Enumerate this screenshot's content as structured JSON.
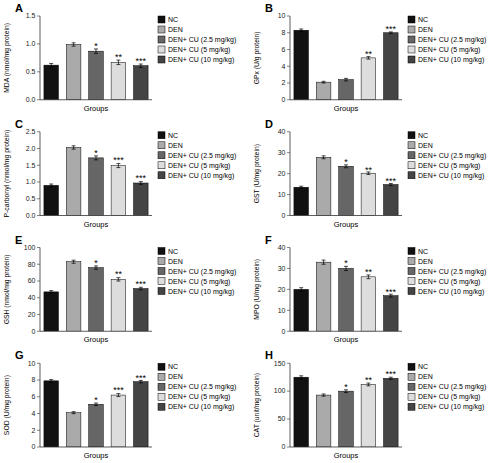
{
  "chart_data": [
    {
      "type": "bar",
      "title": "A",
      "xlabel": "Groups",
      "ylabel": "MDA (nmol/mg protein)",
      "categories": [
        "NC",
        "DEN",
        "DEN+ CU (2.5 mg/kg)",
        "DEN+ CU (5 mg/kg)",
        "DEN+ CU (10 mg/kg)"
      ],
      "values": [
        0.62,
        0.99,
        0.87,
        0.67,
        0.61
      ],
      "errors": [
        0.03,
        0.03,
        0.04,
        0.04,
        0.03
      ],
      "colors": [
        "#111111",
        "#aaaaaa",
        "#666666",
        "#dddddd",
        "#444444"
      ],
      "ylim": [
        0,
        1.5
      ],
      "yticks": [
        {
          "value": 0,
          "label": "0.0"
        },
        0.5,
        {
          "value": 1,
          "label": "1.0"
        },
        1.5
      ],
      "annotations": [
        {
          "text": "*",
          "category": "DEN+ CU (2.5 mg/kg)",
          "y": 0.93
        },
        {
          "text": "**",
          "category": "DEN+ CU (5 mg/kg)",
          "y": 0.73
        },
        {
          "text": "***",
          "category": "DEN+ CU (10 mg/kg)",
          "y": 0.66
        }
      ],
      "legend": "right",
      "grid": false,
      "tick_labels": "y"
    },
    {
      "type": "bar",
      "title": "B",
      "xlabel": "Groups",
      "ylabel": "GPx (U/g protein)",
      "categories": [
        "NC",
        "DEN",
        "DEN+ CU (2.5 mg/kg)",
        "DEN+ CU (5 mg/kg)",
        "DEN+ CU (10 mg/kg)"
      ],
      "values": [
        8.3,
        2.1,
        2.4,
        5.0,
        8.0
      ],
      "errors": [
        0.15,
        0.1,
        0.15,
        0.15,
        0.1
      ],
      "colors": [
        "#111111",
        "#aaaaaa",
        "#666666",
        "#dddddd",
        "#444444"
      ],
      "ylim": [
        0,
        10
      ],
      "yticks": [
        0,
        2,
        4,
        6,
        8,
        10
      ],
      "annotations": [
        {
          "text": "**",
          "category": "DEN+ CU (5 mg/kg)",
          "y": 5.25
        },
        {
          "text": "***",
          "category": "DEN+ CU (10 mg/kg)",
          "y": 8.2
        }
      ],
      "legend": "right",
      "grid": false,
      "tick_labels": "y"
    },
    {
      "type": "bar",
      "title": "C",
      "xlabel": "Groups",
      "ylabel": "P-carbonyl (nmol/mg protein)",
      "categories": [
        "NC",
        "DEN",
        "DEN+ CU (2.5 mg/kg)",
        "DEN+ CU (5 mg/kg)",
        "DEN+ CU (10 mg/kg)"
      ],
      "values": [
        0.9,
        2.03,
        1.72,
        1.49,
        0.97
      ],
      "errors": [
        0.04,
        0.05,
        0.06,
        0.06,
        0.04
      ],
      "colors": [
        "#111111",
        "#aaaaaa",
        "#666666",
        "#dddddd",
        "#444444"
      ],
      "ylim": [
        0,
        2.5
      ],
      "yticks": [
        {
          "value": 0,
          "label": "0.0"
        },
        0.5,
        {
          "value": 1,
          "label": "1.0"
        },
        1.5,
        {
          "value": 2,
          "label": "2.0"
        },
        2.5
      ],
      "annotations": [
        {
          "text": "*",
          "category": "DEN+ CU (2.5 mg/kg)",
          "y": 1.82
        },
        {
          "text": "***",
          "category": "DEN+ CU (5 mg/kg)",
          "y": 1.59
        },
        {
          "text": "***",
          "category": "DEN+ CU (10 mg/kg)",
          "y": 1.05
        }
      ],
      "legend": "right",
      "grid": false,
      "tick_labels": "y"
    },
    {
      "type": "bar",
      "title": "D",
      "xlabel": "Groups",
      "ylabel": "GST (U/mg protein)",
      "categories": [
        "NC",
        "DEN",
        "DEN+ CU (2.5 mg/kg)",
        "DEN+ CU (5 mg/kg)",
        "DEN+ CU (10 mg/kg)"
      ],
      "values": [
        13.5,
        27.8,
        23.5,
        20.2,
        14.8
      ],
      "errors": [
        0.5,
        0.7,
        0.7,
        0.6,
        0.5
      ],
      "colors": [
        "#111111",
        "#aaaaaa",
        "#666666",
        "#dddddd",
        "#444444"
      ],
      "ylim": [
        0,
        40
      ],
      "yticks": [
        0,
        10,
        20,
        30,
        40
      ],
      "annotations": [
        {
          "text": "*",
          "category": "DEN+ CU (2.5 mg/kg)",
          "y": 24.6
        },
        {
          "text": "**",
          "category": "DEN+ CU (5 mg/kg)",
          "y": 21.0
        },
        {
          "text": "***",
          "category": "DEN+ CU (10 mg/kg)",
          "y": 15.5
        }
      ],
      "legend": "right",
      "grid": false,
      "tick_labels": "y"
    },
    {
      "type": "bar",
      "title": "E",
      "xlabel": "Groups",
      "ylabel": "GSH (nmol/mg protein)",
      "categories": [
        "NC",
        "DEN",
        "DEN+ CU (2.5 mg/kg)",
        "DEN+ CU (5 mg/kg)",
        "DEN+ CU (10 mg/kg)"
      ],
      "values": [
        47,
        83,
        76,
        62,
        51
      ],
      "errors": [
        1.5,
        1.8,
        2.0,
        2.0,
        1.5
      ],
      "colors": [
        "#111111",
        "#aaaaaa",
        "#666666",
        "#dddddd",
        "#444444"
      ],
      "ylim": [
        0,
        100
      ],
      "yticks": [
        0,
        20,
        40,
        60,
        80,
        100
      ],
      "annotations": [
        {
          "text": "*",
          "category": "DEN+ CU (2.5 mg/kg)",
          "y": 79.5
        },
        {
          "text": "**",
          "category": "DEN+ CU (5 mg/kg)",
          "y": 65.5
        },
        {
          "text": "***",
          "category": "DEN+ CU (10 mg/kg)",
          "y": 54.0
        }
      ],
      "legend": "right",
      "grid": false,
      "tick_labels": "y"
    },
    {
      "type": "bar",
      "title": "F",
      "xlabel": "Groups",
      "ylabel": "MPO (U/mg protein)",
      "categories": [
        "NC",
        "DEN",
        "DEN+ CU (2.5 mg/kg)",
        "DEN+ CU (5 mg/kg)",
        "DEN+ CU (10 mg/kg)"
      ],
      "values": [
        20,
        33,
        30,
        26,
        17
      ],
      "errors": [
        0.8,
        1.0,
        1.0,
        0.9,
        0.7
      ],
      "colors": [
        "#111111",
        "#aaaaaa",
        "#666666",
        "#dddddd",
        "#444444"
      ],
      "ylim": [
        0,
        40
      ],
      "yticks": [
        0,
        10,
        20,
        30,
        40
      ],
      "annotations": [
        {
          "text": "*",
          "category": "DEN+ CU (2.5 mg/kg)",
          "y": 31.5
        },
        {
          "text": "**",
          "category": "DEN+ CU (5 mg/kg)",
          "y": 27.2
        },
        {
          "text": "***",
          "category": "DEN+ CU (10 mg/kg)",
          "y": 18.0
        }
      ],
      "legend": "right",
      "grid": false,
      "tick_labels": "y"
    },
    {
      "type": "bar",
      "title": "G",
      "xlabel": "Groups",
      "ylabel": "SOD (U/mg protein)",
      "categories": [
        "NC",
        "DEN",
        "DEN+ CU (2.5 mg/kg)",
        "DEN+ CU (5 mg/kg)",
        "DEN+ CU (10 mg/kg)"
      ],
      "values": [
        7.9,
        4.1,
        5.1,
        6.2,
        7.8
      ],
      "errors": [
        0.15,
        0.12,
        0.15,
        0.18,
        0.15
      ],
      "colors": [
        "#111111",
        "#aaaaaa",
        "#666666",
        "#dddddd",
        "#444444"
      ],
      "ylim": [
        0,
        10
      ],
      "yticks": [
        0,
        2,
        4,
        6,
        8,
        10
      ],
      "annotations": [
        {
          "text": "*",
          "category": "DEN+ CU (2.5 mg/kg)",
          "y": 5.35
        },
        {
          "text": "***",
          "category": "DEN+ CU (5 mg/kg)",
          "y": 6.55
        },
        {
          "text": "***",
          "category": "DEN+ CU (10 mg/kg)",
          "y": 8.05
        }
      ],
      "legend": "right",
      "grid": false,
      "tick_labels": "y"
    },
    {
      "type": "bar",
      "title": "H",
      "xlabel": "Groups",
      "ylabel": "CAT (unit/mg protein)",
      "categories": [
        "NC",
        "DEN",
        "DEN+ CU (2.5 mg/kg)",
        "DEN+ CU (5 mg/kg)",
        "DEN+ CU (10 mg/kg)"
      ],
      "values": [
        125,
        93,
        100,
        112,
        123
      ],
      "errors": [
        2.5,
        2.0,
        2.5,
        2.5,
        2.0
      ],
      "colors": [
        "#111111",
        "#aaaaaa",
        "#666666",
        "#dddddd",
        "#444444"
      ],
      "ylim": [
        0,
        150
      ],
      "yticks": [
        0,
        50,
        100,
        150
      ],
      "annotations": [
        {
          "text": "*",
          "category": "DEN+ CU (2.5 mg/kg)",
          "y": 104.5
        },
        {
          "text": "**",
          "category": "DEN+ CU (5 mg/kg)",
          "y": 116.5
        },
        {
          "text": "***",
          "category": "DEN+ CU (10 mg/kg)",
          "y": 127.0
        }
      ],
      "legend": "right",
      "grid": false,
      "tick_labels": "y"
    }
  ]
}
